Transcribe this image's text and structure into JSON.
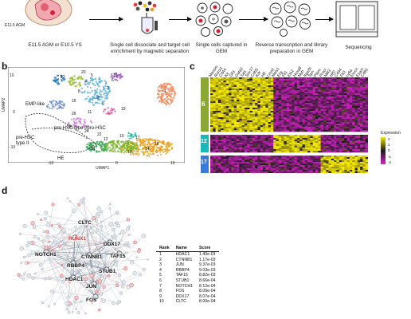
{
  "workflow": {
    "embryo_label": "E11.5 AGM",
    "steps": [
      "E11.5 AGM or E10.5 YS",
      "Single cell dissociate and target cell enrichment by magnetic separation",
      "Single cells captured in GEM",
      "Reverse transcription and library preparation in GEM",
      "Sequencing"
    ]
  },
  "panel_b": {
    "letter": "b",
    "x_axis": "UMAP1",
    "y_axis": "UMAP2",
    "x_ticks": [
      "-10",
      "0",
      "10"
    ],
    "y_ticks": [
      "10",
      "0",
      "-10"
    ],
    "annotations": [
      "EMP-like",
      "pre-HSC type I/pro-HSC",
      "pre-HSC type II",
      "HE"
    ],
    "cluster_labels": [
      "1",
      "2",
      "3",
      "4",
      "5",
      "6",
      "7",
      "8",
      "9",
      "10",
      "11",
      "12",
      "13",
      "14",
      "15",
      "16",
      "17",
      "18",
      "19",
      "20",
      "21",
      "22",
      "23",
      "24",
      "25",
      "26"
    ]
  },
  "panel_c": {
    "letter": "c",
    "gene_labels": [
      "Mecom",
      "Runx1",
      "Cd44",
      "Kit",
      "Gfi1",
      "Gata2",
      "Tal1",
      "Sox17",
      "Cdh5",
      "Kdr",
      "Hlf",
      "Lmo2",
      "Meis1",
      "Erg",
      "Fli1",
      "Ets2",
      "Hoxa9",
      "Myb",
      "Itga2b",
      "Spn",
      "Ptprc",
      "Procr",
      "Mllt3",
      "Hlf2",
      "Cd34",
      "Flt3",
      "Ly6a",
      "Emcn",
      "Esam",
      "Cd93"
    ],
    "row_groups": [
      "6",
      "12",
      "17"
    ],
    "legend_title": "Expression",
    "legend_ticks": [
      "2",
      "1",
      "0",
      "-1",
      "-2"
    ]
  },
  "panel_d": {
    "letter": "d",
    "hub_genes": [
      "CLTC",
      "RUNX1",
      "DDX17",
      "NOTCH1",
      "CTNNB1",
      "TAF15",
      "RBBP4",
      "STUB1",
      "HDAC1",
      "JUN",
      "FOS"
    ],
    "table": {
      "headers": [
        "Rank",
        "Name",
        "Score"
      ],
      "rows": [
        [
          "1",
          "HDAC1",
          "1.40e-03"
        ],
        [
          "2",
          "CTNNB1",
          "1.17e-03"
        ],
        [
          "3",
          "JUN",
          "9.37e-03"
        ],
        [
          "4",
          "RBBP4",
          "9.03e-03"
        ],
        [
          "5",
          "TAF15",
          "8.82e-03"
        ],
        [
          "6",
          "STUB1",
          "8.66e-04"
        ],
        [
          "7",
          "NOTCH1",
          "8.12e-04"
        ],
        [
          "8",
          "FOS",
          "8.09e-04"
        ],
        [
          "9",
          "DDX17",
          "8.07e-04"
        ],
        [
          "10",
          "CLTC",
          "8.00e-04"
        ]
      ]
    }
  },
  "colors": {
    "heatmap_high": "#f2e600",
    "heatmap_low": "#e020d0",
    "heatmap_mid": "#1a1a1a",
    "group_6": "#8aa832",
    "group_12": "#17b8b8",
    "group_17": "#3a7ad8",
    "network_highlight": "#d83030"
  }
}
